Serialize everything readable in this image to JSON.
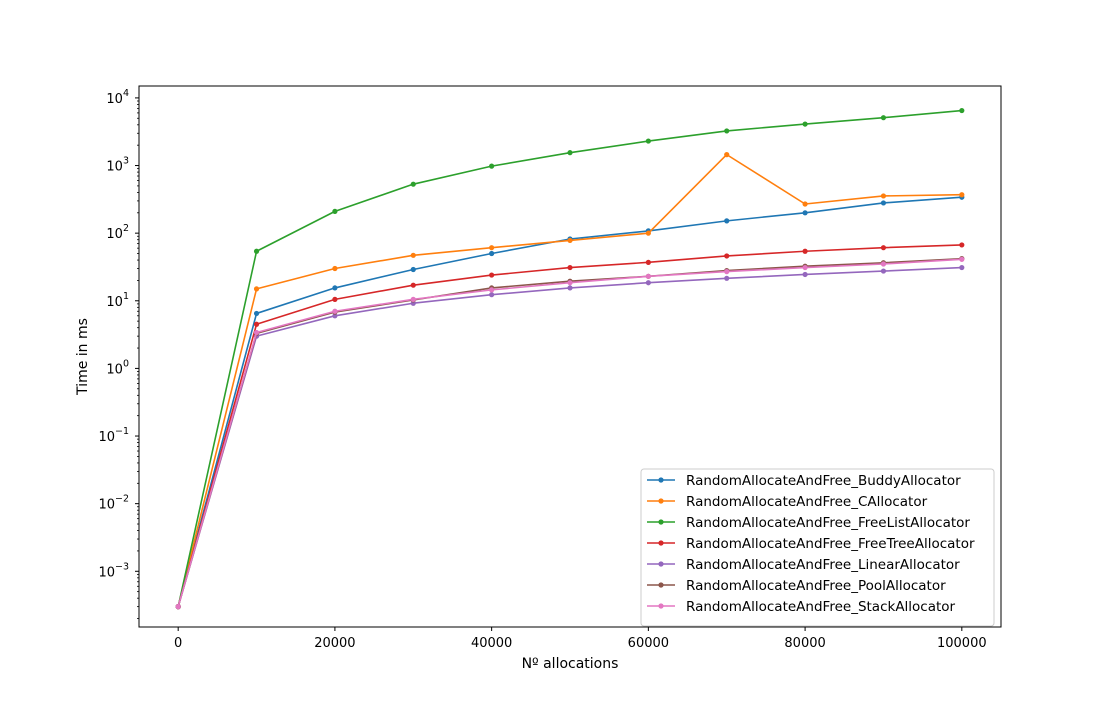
{
  "chart_data": {
    "type": "line",
    "title": "",
    "xlabel": "Nº allocations",
    "ylabel": "Time in ms",
    "xscale": "linear",
    "yscale": "log",
    "xlim": [
      -5000,
      105000
    ],
    "ylim": [
      0.00015,
      15000
    ],
    "grid": false,
    "legend_position": "lower-right",
    "x_ticks": [
      {
        "value": 0,
        "label": "0"
      },
      {
        "value": 20000,
        "label": "20000"
      },
      {
        "value": 40000,
        "label": "40000"
      },
      {
        "value": 60000,
        "label": "60000"
      },
      {
        "value": 80000,
        "label": "80000"
      },
      {
        "value": 100000,
        "label": "100000"
      }
    ],
    "y_ticks": [
      {
        "value": 0.001,
        "base": "10",
        "exp": "−3"
      },
      {
        "value": 0.01,
        "base": "10",
        "exp": "−2"
      },
      {
        "value": 0.1,
        "base": "10",
        "exp": "−1"
      },
      {
        "value": 1,
        "base": "10",
        "exp": "0"
      },
      {
        "value": 10,
        "base": "10",
        "exp": "1"
      },
      {
        "value": 100,
        "base": "10",
        "exp": "2"
      },
      {
        "value": 1000,
        "base": "10",
        "exp": "3"
      },
      {
        "value": 10000,
        "base": "10",
        "exp": "4"
      }
    ],
    "x": [
      0,
      10000,
      20000,
      30000,
      40000,
      50000,
      60000,
      70000,
      80000,
      90000,
      100000
    ],
    "series": [
      {
        "name": "RandomAllocateAndFree_BuddyAllocator",
        "color": "#1f77b4",
        "values": [
          0.0003,
          6.5,
          15.5,
          29,
          50,
          82,
          108,
          152,
          200,
          280,
          340
        ]
      },
      {
        "name": "RandomAllocateAndFree_CAllocator",
        "color": "#ff7f0e",
        "values": [
          0.0003,
          15,
          30,
          47,
          61,
          78,
          100,
          1450,
          270,
          355,
          370
        ]
      },
      {
        "name": "RandomAllocateAndFree_FreeListAllocator",
        "color": "#2ca02c",
        "values": [
          0.0003,
          54,
          210,
          530,
          980,
          1550,
          2300,
          3250,
          4100,
          5100,
          6500
        ]
      },
      {
        "name": "RandomAllocateAndFree_FreeTreeAllocator",
        "color": "#d62728",
        "values": [
          0.0003,
          4.5,
          10.5,
          17,
          24,
          31,
          37,
          46,
          54,
          61,
          67
        ]
      },
      {
        "name": "RandomAllocateAndFree_LinearAllocator",
        "color": "#9467bd",
        "values": [
          0.0003,
          3.0,
          6.0,
          9.2,
          12.3,
          15.5,
          18.5,
          21.5,
          24.5,
          27.5,
          31
        ]
      },
      {
        "name": "RandomAllocateAndFree_PoolAllocator",
        "color": "#8c564b",
        "values": [
          0.0003,
          3.3,
          6.8,
          10.3,
          15.5,
          19.5,
          23,
          28,
          32.5,
          36.5,
          42
        ]
      },
      {
        "name": "RandomAllocateAndFree_StackAllocator",
        "color": "#e377c2",
        "values": [
          0.0003,
          3.4,
          7.0,
          10.5,
          14.5,
          18.5,
          23,
          27,
          31,
          35,
          41
        ]
      }
    ]
  }
}
